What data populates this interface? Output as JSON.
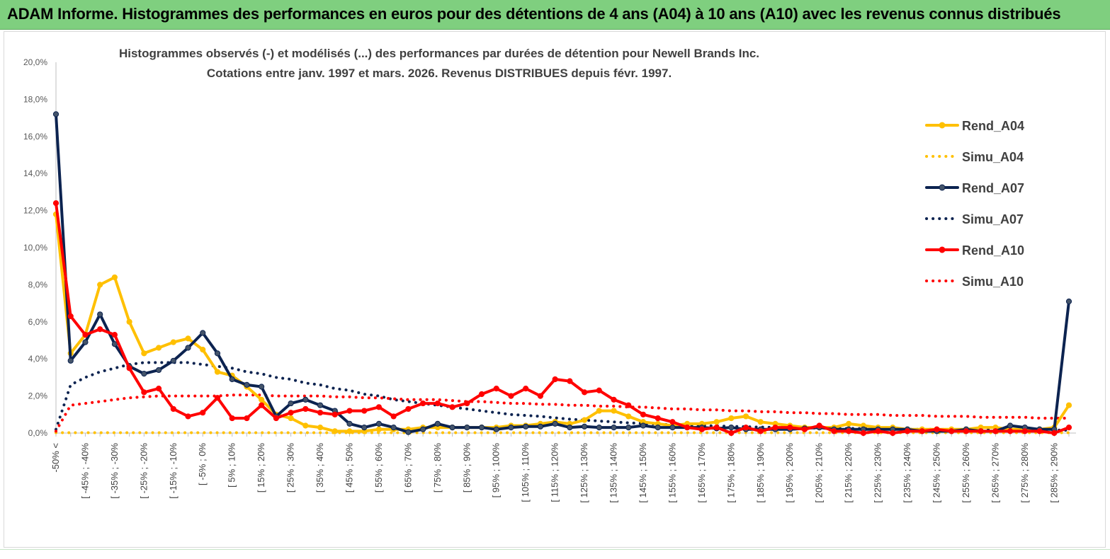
{
  "banner": {
    "title": "ADAM Informe. Histogrammes des performances en euros pour des détentions de 4 ans (A04) à 10 ans (A10) avec les revenus connus distribués"
  },
  "chart_data": {
    "type": "line",
    "title": "Histogrammes observés (-) et modélisés (...) des performances par durées de détention pour Newell Brands Inc.",
    "subtitle": "Cotations entre janv. 1997 et mars. 2026. Revenus DISTRIBUES depuis févr. 1997.",
    "xlabel": "",
    "ylabel": "",
    "ylim": [
      0,
      20
    ],
    "yticks": [
      "0,0%",
      "2,0%",
      "4,0%",
      "6,0%",
      "8,0%",
      "10,0%",
      "12,0%",
      "14,0%",
      "16,0%",
      "18,0%",
      "20,0%"
    ],
    "grid": false,
    "legend_position": "right",
    "category_labels": [
      "-50% <",
      "[ -45% ; -40%",
      "[ -35% ; -30%",
      "[ -25% ; -20%",
      "[ -15% ; -10%",
      "[ -5% ; 0%",
      "[ 5% ; 10%",
      "[ 15% ; 20%",
      "[ 25% ; 30%",
      "[ 35% ; 40%",
      "[ 45% ; 50%",
      "[ 55% ; 60%",
      "[ 65% ; 70%",
      "[ 75% ; 80%",
      "[ 85% ; 90%",
      "[ 95% ; 100%",
      "[ 105% ; 110%",
      "[ 115% ; 120%",
      "[ 125% ; 130%",
      "[ 135% ; 140%",
      "[ 145% ; 150%",
      "[ 155% ; 160%",
      "[ 165% ; 170%",
      "[ 175% ; 180%",
      "[ 185% ; 190%",
      "[ 195% ; 200%",
      "[ 205% ; 210%",
      "[ 215% ; 220%",
      "[ 225% ; 230%",
      "[ 235% ; 240%",
      "[ 245% ; 250%",
      "[ 255% ; 260%",
      "[ 265% ; 270%",
      "[ 275% ; 280%",
      "[ 285% ; 290%"
    ],
    "category_label_index": [
      0,
      2,
      4,
      6,
      8,
      10,
      12,
      14,
      16,
      18,
      20,
      22,
      24,
      26,
      28,
      30,
      32,
      34,
      36,
      38,
      40,
      42,
      44,
      46,
      48,
      50,
      52,
      54,
      56,
      58,
      60,
      62,
      64,
      66,
      68
    ],
    "n_points": 70,
    "series": [
      {
        "name": "Rend_A04",
        "color": "#ffc000",
        "style": "solid",
        "marker": true,
        "values": [
          11.8,
          4.3,
          5.3,
          8.0,
          8.4,
          6.0,
          4.3,
          4.6,
          4.9,
          5.1,
          4.5,
          3.3,
          3.1,
          2.5,
          1.8,
          1.0,
          0.8,
          0.4,
          0.3,
          0.1,
          0.1,
          0.1,
          0.2,
          0.2,
          0.2,
          0.3,
          0.3,
          0.3,
          0.3,
          0.3,
          0.3,
          0.4,
          0.4,
          0.5,
          0.6,
          0.5,
          0.7,
          1.2,
          1.2,
          0.9,
          0.6,
          0.5,
          0.4,
          0.5,
          0.5,
          0.6,
          0.8,
          0.9,
          0.6,
          0.5,
          0.4,
          0.3,
          0.3,
          0.3,
          0.5,
          0.4,
          0.3,
          0.3,
          0.2,
          0.2,
          0.2,
          0.2,
          0.2,
          0.3,
          0.3,
          0.2,
          0.2,
          0.2,
          0.3,
          1.5
        ]
      },
      {
        "name": "Simu_A04",
        "color": "#ffc000",
        "style": "dotted",
        "marker": false,
        "values": [
          0.02,
          0.02,
          0.02,
          0.02,
          0.02,
          0.02,
          0.02,
          0.02,
          0.02,
          0.02,
          0.02,
          0.02,
          0.02,
          0.02,
          0.02,
          0.02,
          0.02,
          0.02,
          0.02,
          0.02,
          0.02,
          0.02,
          0.02,
          0.02,
          0.02,
          0.02,
          0.02,
          0.02,
          0.02,
          0.02,
          0.02,
          0.02,
          0.02,
          0.02,
          0.02,
          0.02,
          0.02,
          0.02,
          0.02,
          0.02,
          0.02,
          0.02,
          0.02,
          0.02,
          0.02,
          0.02,
          0.02,
          0.02,
          0.02,
          0.02,
          0.02,
          0.02,
          0.02,
          0.02,
          0.02,
          0.02,
          0.02,
          0.02,
          0.02,
          0.02,
          0.02,
          0.02,
          0.02,
          0.02,
          0.02,
          0.02,
          0.02,
          0.02,
          0.02,
          0.02
        ]
      },
      {
        "name": "Rend_A07",
        "color": "#0c2350",
        "style": "solid",
        "marker": true,
        "values": [
          17.2,
          3.9,
          4.9,
          6.4,
          4.8,
          3.6,
          3.2,
          3.4,
          3.9,
          4.6,
          5.4,
          4.3,
          2.9,
          2.6,
          2.5,
          0.9,
          1.6,
          1.8,
          1.5,
          1.2,
          0.5,
          0.3,
          0.5,
          0.3,
          0.05,
          0.2,
          0.5,
          0.3,
          0.3,
          0.3,
          0.2,
          0.3,
          0.35,
          0.35,
          0.5,
          0.3,
          0.35,
          0.3,
          0.3,
          0.3,
          0.4,
          0.3,
          0.3,
          0.3,
          0.3,
          0.25,
          0.3,
          0.2,
          0.2,
          0.2,
          0.2,
          0.25,
          0.3,
          0.2,
          0.2,
          0.2,
          0.2,
          0.2,
          0.2,
          0.1,
          0.1,
          0.1,
          0.2,
          0.1,
          0.1,
          0.4,
          0.3,
          0.2,
          0.2,
          7.1
        ]
      },
      {
        "name": "Simu_A07",
        "color": "#0c2350",
        "style": "dotted",
        "marker": false,
        "values": [
          0.2,
          2.6,
          3.0,
          3.3,
          3.5,
          3.7,
          3.8,
          3.8,
          3.8,
          3.8,
          3.7,
          3.6,
          3.5,
          3.3,
          3.2,
          3.0,
          2.9,
          2.7,
          2.6,
          2.4,
          2.3,
          2.1,
          2.0,
          1.8,
          1.7,
          1.6,
          1.5,
          1.4,
          1.3,
          1.2,
          1.1,
          1.0,
          0.95,
          0.9,
          0.82,
          0.75,
          0.7,
          0.65,
          0.6,
          0.55,
          0.52,
          0.48,
          0.45,
          0.42,
          0.4,
          0.38,
          0.36,
          0.34,
          0.32,
          0.3,
          0.29,
          0.28,
          0.27,
          0.26,
          0.25,
          0.24,
          0.23,
          0.22,
          0.21,
          0.2,
          0.2,
          0.19,
          0.19,
          0.18,
          0.18,
          0.17,
          0.17,
          0.16,
          0.16,
          0.15
        ]
      },
      {
        "name": "Rend_A10",
        "color": "#ff0000",
        "style": "solid",
        "marker": true,
        "values": [
          12.4,
          6.3,
          5.3,
          5.6,
          5.3,
          3.5,
          2.2,
          2.4,
          1.3,
          0.9,
          1.1,
          1.9,
          0.8,
          0.8,
          1.5,
          0.8,
          1.1,
          1.3,
          1.1,
          1.0,
          1.2,
          1.2,
          1.4,
          0.9,
          1.3,
          1.6,
          1.6,
          1.4,
          1.6,
          2.1,
          2.4,
          2.0,
          2.4,
          2.0,
          2.9,
          2.8,
          2.2,
          2.3,
          1.8,
          1.5,
          1.0,
          0.8,
          0.6,
          0.3,
          0.2,
          0.3,
          0.0,
          0.3,
          0.1,
          0.3,
          0.3,
          0.2,
          0.4,
          0.1,
          0.1,
          0.0,
          0.1,
          0.0,
          0.1,
          0.1,
          0.2,
          0.1,
          0.1,
          0.1,
          0.1,
          0.1,
          0.1,
          0.1,
          0.0,
          0.3
        ]
      },
      {
        "name": "Simu_A10",
        "color": "#ff0000",
        "style": "dotted",
        "marker": false,
        "values": [
          0.1,
          1.5,
          1.6,
          1.7,
          1.8,
          1.9,
          1.95,
          2.0,
          2.0,
          2.0,
          2.0,
          2.0,
          2.05,
          2.05,
          2.05,
          2.0,
          2.0,
          2.0,
          2.0,
          1.95,
          1.95,
          1.9,
          1.9,
          1.85,
          1.8,
          1.8,
          1.8,
          1.75,
          1.7,
          1.7,
          1.65,
          1.6,
          1.6,
          1.55,
          1.55,
          1.5,
          1.5,
          1.45,
          1.45,
          1.4,
          1.4,
          1.35,
          1.3,
          1.3,
          1.25,
          1.25,
          1.2,
          1.2,
          1.15,
          1.15,
          1.1,
          1.1,
          1.05,
          1.05,
          1.0,
          1.0,
          1.0,
          0.95,
          0.95,
          0.95,
          0.9,
          0.9,
          0.9,
          0.85,
          0.85,
          0.85,
          0.85,
          0.8,
          0.8,
          0.8
        ]
      }
    ]
  }
}
